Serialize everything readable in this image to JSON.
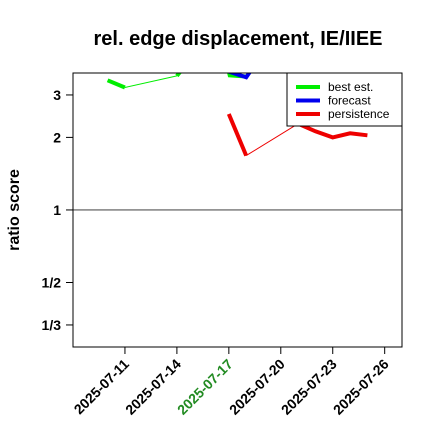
{
  "chart_data": {
    "type": "line",
    "title": "rel. edge displacement, IE/IIEE",
    "xlabel": "",
    "ylabel": "ratio score",
    "x_ticks": [
      "2025-07-11",
      "2025-07-14",
      "2025-07-17",
      "2025-07-20",
      "2025-07-23",
      "2025-07-26"
    ],
    "x_tick_colors": [
      "#000000",
      "#000000",
      "#228B22",
      "#000000",
      "#000000",
      "#000000"
    ],
    "y_scale": "log",
    "y_ticks": [
      {
        "value": 0.3333,
        "label": "1/3"
      },
      {
        "value": 0.5,
        "label": "1/2"
      },
      {
        "value": 1,
        "label": "1"
      },
      {
        "value": 2,
        "label": "2"
      },
      {
        "value": 3,
        "label": "3"
      }
    ],
    "xlim": [
      "2025-07-08",
      "2025-07-27"
    ],
    "ylim": [
      0.27,
      3.7
    ],
    "reference_line": 1,
    "legend": {
      "position": "top-right",
      "entries": [
        "best est.",
        "forecast",
        "persistence"
      ]
    },
    "series": [
      {
        "name": "best est.",
        "color": "#00ee00",
        "segments": [
          {
            "points": [
              [
                "2025-07-10",
                3.45
              ],
              [
                "2025-07-11",
                3.22
              ]
            ],
            "width": "thick"
          },
          {
            "points": [
              [
                "2025-07-11",
                3.22
              ],
              [
                "2025-07-14",
                3.6
              ]
            ],
            "width": "thin"
          },
          {
            "points": [
              [
                "2025-07-14",
                3.6
              ],
              [
                "2025-07-14.2",
                3.75
              ]
            ],
            "width": "thick"
          },
          {
            "points": [
              [
                "2025-07-17",
                3.75
              ],
              [
                "2025-07-17.05",
                3.62
              ],
              [
                "2025-07-18",
                3.58
              ]
            ],
            "width": "thick"
          }
        ]
      },
      {
        "name": "forecast",
        "color": "#0000ee",
        "segments": [
          {
            "points": [
              [
                "2025-07-17",
                3.75
              ],
              [
                "2025-07-18",
                3.55
              ],
              [
                "2025-07-18.2",
                3.72
              ]
            ],
            "width": "thick"
          }
        ]
      },
      {
        "name": "persistence",
        "color": "#ee0000",
        "segments": [
          {
            "points": [
              [
                "2025-07-17",
                2.5
              ],
              [
                "2025-07-18",
                1.68
              ]
            ],
            "width": "thick"
          },
          {
            "points": [
              [
                "2025-07-18",
                1.68
              ],
              [
                "2025-07-21",
                2.28
              ]
            ],
            "width": "thin"
          },
          {
            "points": [
              [
                "2025-07-21",
                2.28
              ],
              [
                "2025-07-22",
                2.12
              ],
              [
                "2025-07-23",
                2.0
              ],
              [
                "2025-07-24",
                2.08
              ],
              [
                "2025-07-25",
                2.04
              ]
            ],
            "width": "thick"
          }
        ]
      }
    ]
  }
}
